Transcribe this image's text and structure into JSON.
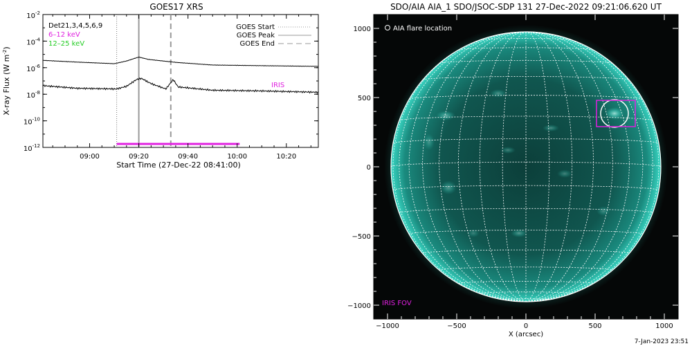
{
  "chart_data": [
    {
      "type": "line",
      "title": "GOES17 XRS",
      "xlabel": "Start Time (27-Dec-22 08:41:00)",
      "ylabel": "X-ray Flux (W m^-2)",
      "ylabel_main": "X-ray Flux (W m",
      "ylabel_sup": "-2",
      "ylabel_close": ")",
      "y_log_scale": true,
      "ylim": [
        1e-12,
        0.01
      ],
      "xlim": [
        "08:41",
        "10:33"
      ],
      "x_ticks": [
        {
          "minute": 540,
          "label": "09:00"
        },
        {
          "minute": 560,
          "label": "09:20"
        },
        {
          "minute": 580,
          "label": "09:40"
        },
        {
          "minute": 600,
          "label": "10:00"
        },
        {
          "minute": 620,
          "label": "10:20"
        }
      ],
      "y_ticks": [
        {
          "exp": -2,
          "base": "10",
          "sup": "-2"
        },
        {
          "exp": -4,
          "base": "10",
          "sup": "-4"
        },
        {
          "exp": -6,
          "base": "10",
          "sup": "-6"
        },
        {
          "exp": -8,
          "base": "10",
          "sup": "-8"
        },
        {
          "exp": -10,
          "base": "10",
          "sup": "-10"
        },
        {
          "exp": -12,
          "base": "10",
          "sup": "-12"
        }
      ],
      "channel_labels": [
        {
          "text": "Det21,3,4,5,6,9",
          "color": "#000000"
        },
        {
          "text": "6–12 keV",
          "color": "#e020e0"
        },
        {
          "text": "12–25 keV",
          "color": "#22cc22"
        }
      ],
      "legend": [
        {
          "label": "GOES Start",
          "style": "dotted"
        },
        {
          "label": "GOES Peak",
          "style": "solid"
        },
        {
          "label": "GOES End",
          "style": "dashed"
        }
      ],
      "markers": {
        "goes_start": "09:11",
        "goes_peak": "09:20",
        "goes_end": "09:33"
      },
      "iris_window": {
        "start": "09:11",
        "end": "10:01",
        "level_exp": -12,
        "color": "#e020e0"
      },
      "iris_label": "IRIS",
      "series": [
        {
          "color": "#000000",
          "points": [
            {
              "t": "08:41",
              "exp": -5.45
            },
            {
              "t": "08:55",
              "exp": -5.58
            },
            {
              "t": "09:10",
              "exp": -5.7
            },
            {
              "t": "09:15",
              "exp": -5.5
            },
            {
              "t": "09:20",
              "exp": -5.2
            },
            {
              "t": "09:24",
              "exp": -5.38
            },
            {
              "t": "09:35",
              "exp": -5.6
            },
            {
              "t": "09:50",
              "exp": -5.8
            },
            {
              "t": "10:10",
              "exp": -5.85
            },
            {
              "t": "10:33",
              "exp": -5.9
            }
          ]
        },
        {
          "color": "#000000",
          "points": [
            {
              "t": "08:41",
              "exp": -7.35
            },
            {
              "t": "08:55",
              "exp": -7.55
            },
            {
              "t": "09:11",
              "exp": -7.6
            },
            {
              "t": "09:15",
              "exp": -7.4
            },
            {
              "t": "09:19",
              "exp": -6.9
            },
            {
              "t": "09:21",
              "exp": -6.8
            },
            {
              "t": "09:25",
              "exp": -7.2
            },
            {
              "t": "09:31",
              "exp": -7.6
            },
            {
              "t": "09:34",
              "exp": -6.9
            },
            {
              "t": "09:36",
              "exp": -7.45
            },
            {
              "t": "09:50",
              "exp": -7.7
            },
            {
              "t": "10:10",
              "exp": -7.75
            },
            {
              "t": "10:33",
              "exp": -7.85
            }
          ]
        }
      ]
    },
    {
      "type": "image",
      "title": "SDO/AIA AIA_1 SDO/JSOC-SDP 131 27-Dec-2022 09:21:06.620 UT",
      "xlabel": "X (arcsec)",
      "xlim": [
        -1100,
        1100
      ],
      "ylim": [
        -1100,
        1100
      ],
      "x_ticks": [
        -1000,
        -500,
        0,
        500,
        1000
      ],
      "y_ticks": [
        1000,
        500,
        0,
        -500,
        -1000
      ],
      "x_tick_labels": [
        "−1000",
        "−500",
        "0",
        "500",
        "1000"
      ],
      "y_tick_labels": [
        "1000",
        "500",
        "0",
        "−500",
        "−1000"
      ],
      "solar_radius_arcsec": 975,
      "b0_deg": -2,
      "grid_step_deg": 10,
      "flare_location_label": "AIA flare location",
      "flare_location": {
        "x": 640,
        "y": 385,
        "radius_arcsec": 100
      },
      "iris_fov_label": "IRIS FOV",
      "iris_fov": {
        "x0": 510,
        "x1": 790,
        "y0": 290,
        "y1": 480
      },
      "colors": {
        "sun": "#1fb5a5",
        "background": "#050707",
        "grid": "#ffffff",
        "iris": "#e020e0"
      }
    }
  ],
  "footer_date": "7-Jan-2023 23:51"
}
